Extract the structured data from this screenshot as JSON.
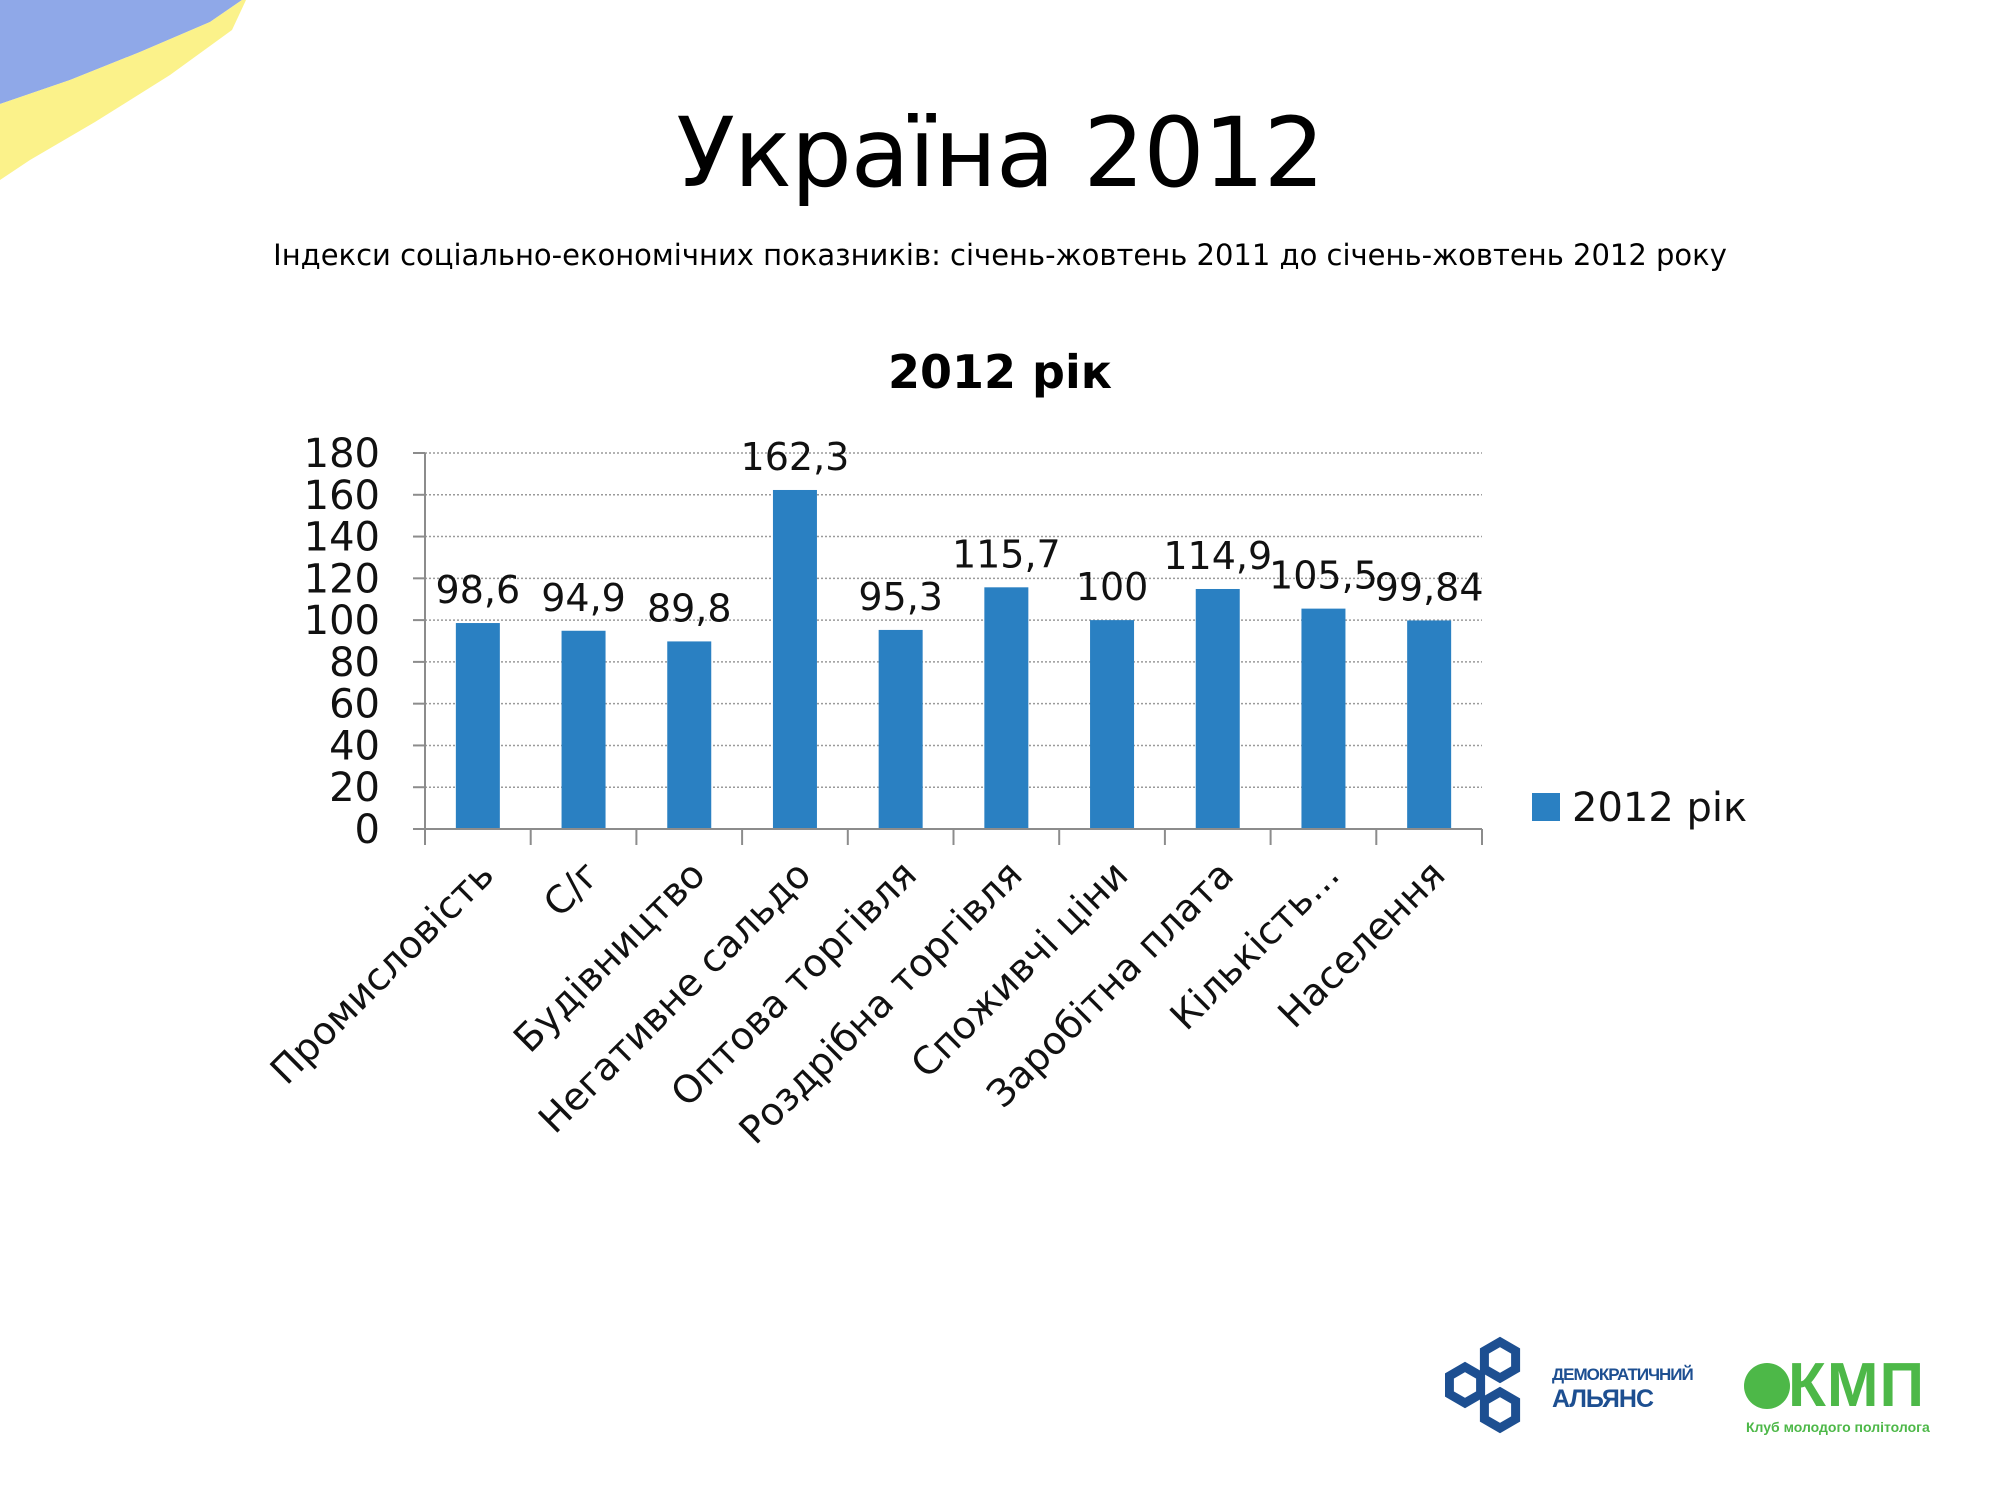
{
  "slide": {
    "title": "Україна 2012",
    "subtitle": "Індекси соціально-економічних показників: січень-жовтень 2011 до січень-жовтень 2012 року"
  },
  "colors": {
    "bar": "#2a80c2",
    "grid": "#9a9a9a",
    "axis": "#8c8c8c",
    "ribbon_blue": "#8fa8e8",
    "ribbon_yellow": "#fbf28a",
    "logo_da": "#1d4f91",
    "logo_kmp": "#4db848"
  },
  "chart_data": {
    "type": "bar",
    "title": "2012 рік",
    "categories": [
      "Промисловість",
      "С/г",
      "Будівництво",
      "Негативне сальдо",
      "Оптова торгівля",
      "Роздрібна торгівля",
      "Споживчі ціни",
      "Заробітна плата",
      "Кількість...",
      "Населення"
    ],
    "series": [
      {
        "name": "2012 рік",
        "values": [
          98.6,
          94.9,
          89.8,
          162.3,
          95.3,
          115.7,
          100,
          114.9,
          105.5,
          99.84
        ]
      }
    ],
    "data_labels": [
      "98,6",
      "94,9",
      "89,8",
      "162,3",
      "95,3",
      "115,7",
      "100",
      "114,9",
      "105,5",
      "99,84"
    ],
    "yticks": [
      "0",
      "20",
      "40",
      "60",
      "80",
      "100",
      "120",
      "140",
      "160",
      "180"
    ],
    "ylim": [
      0,
      180
    ],
    "grid": true,
    "legend": "right",
    "xlabel": "",
    "ylabel": ""
  },
  "logos": {
    "da_icon": "hexagon-chain-icon",
    "da_line1": "ДЕМОКРАТИЧНИЙ",
    "da_line2": "АЛЬЯНС",
    "kmp_text": "КМП",
    "kmp_sub": "Клуб молодого політолога"
  }
}
